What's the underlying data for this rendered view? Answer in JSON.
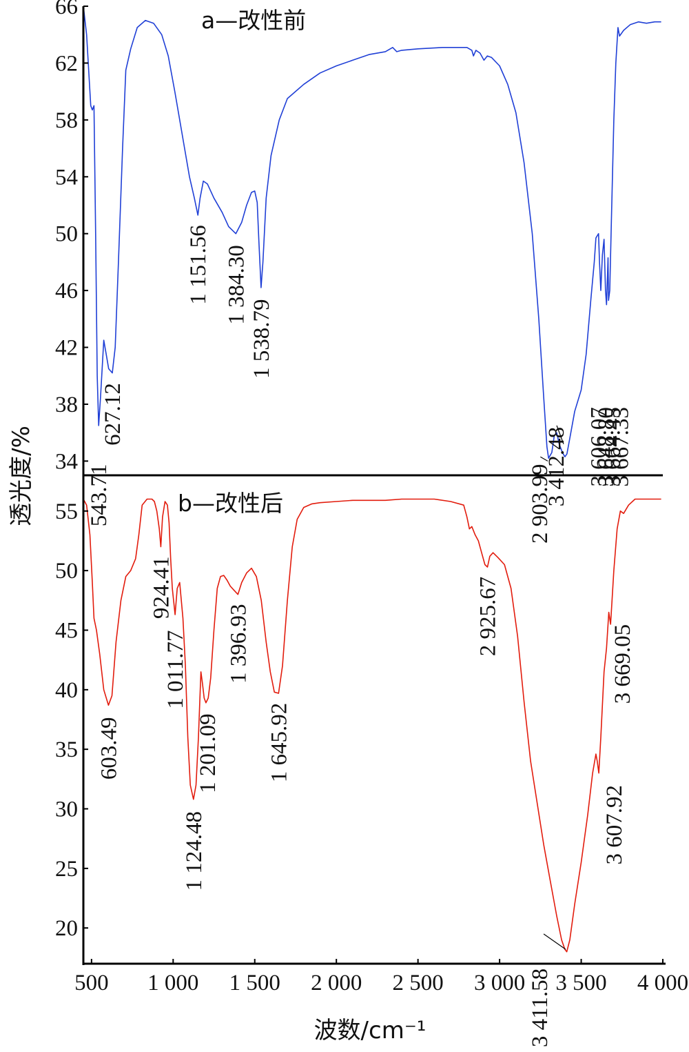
{
  "chart_data": {
    "type": "line",
    "xlabel": "波数/cm⁻¹",
    "ylabel": "透光度/%",
    "xlim": [
      450,
      4000
    ],
    "x_ticks": [
      {
        "value": 500,
        "label": "500"
      },
      {
        "value": 1000,
        "label": "1 000"
      },
      {
        "value": 1500,
        "label": "1 500"
      },
      {
        "value": 2000,
        "label": "2 000"
      },
      {
        "value": 2500,
        "label": "2 500"
      },
      {
        "value": 3000,
        "label": "3 000"
      },
      {
        "value": 3500,
        "label": "3 500"
      },
      {
        "value": 4000,
        "label": "4 000"
      }
    ],
    "panels": [
      {
        "id": "a",
        "title": "a—改性前",
        "color": "#1f3fd6",
        "ylim": [
          33,
          66
        ],
        "y_ticks": [
          {
            "value": 34,
            "label": "34"
          },
          {
            "value": 38,
            "label": "38"
          },
          {
            "value": 42,
            "label": "42"
          },
          {
            "value": 46,
            "label": "46"
          },
          {
            "value": 50,
            "label": "50"
          },
          {
            "value": 54,
            "label": "54"
          },
          {
            "value": 58,
            "label": "58"
          },
          {
            "value": 62,
            "label": "62"
          },
          {
            "value": 66,
            "label": "66"
          }
        ],
        "points": [
          [
            450,
            66
          ],
          [
            470,
            64
          ],
          [
            485,
            61
          ],
          [
            495,
            59
          ],
          [
            505,
            58.7
          ],
          [
            515,
            59
          ],
          [
            525,
            50
          ],
          [
            535,
            40
          ],
          [
            543.71,
            36.5
          ],
          [
            555,
            38.5
          ],
          [
            575,
            42.5
          ],
          [
            590,
            41.5
          ],
          [
            605,
            40.5
          ],
          [
            627.12,
            40.2
          ],
          [
            645,
            42
          ],
          [
            665,
            48
          ],
          [
            690,
            56
          ],
          [
            710,
            61.5
          ],
          [
            740,
            63
          ],
          [
            780,
            64.5
          ],
          [
            830,
            65
          ],
          [
            880,
            64.8
          ],
          [
            930,
            64
          ],
          [
            970,
            62.5
          ],
          [
            1010,
            60
          ],
          [
            1040,
            58
          ],
          [
            1070,
            56
          ],
          [
            1100,
            54
          ],
          [
            1130,
            52.5
          ],
          [
            1151.56,
            51.3
          ],
          [
            1165,
            52.5
          ],
          [
            1185,
            53.7
          ],
          [
            1210,
            53.5
          ],
          [
            1250,
            52.5
          ],
          [
            1300,
            51.5
          ],
          [
            1340,
            50.5
          ],
          [
            1384.3,
            50
          ],
          [
            1420,
            50.8
          ],
          [
            1450,
            52
          ],
          [
            1480,
            52.9
          ],
          [
            1500,
            53
          ],
          [
            1515,
            52.2
          ],
          [
            1525,
            49.5
          ],
          [
            1538.79,
            46.2
          ],
          [
            1550,
            48
          ],
          [
            1570,
            52.5
          ],
          [
            1600,
            55.5
          ],
          [
            1650,
            58
          ],
          [
            1700,
            59.5
          ],
          [
            1800,
            60.5
          ],
          [
            1900,
            61.3
          ],
          [
            2000,
            61.8
          ],
          [
            2100,
            62.2
          ],
          [
            2200,
            62.6
          ],
          [
            2300,
            62.8
          ],
          [
            2345,
            63.1
          ],
          [
            2370,
            62.8
          ],
          [
            2400,
            62.9
          ],
          [
            2500,
            63
          ],
          [
            2650,
            63.1
          ],
          [
            2800,
            63.1
          ],
          [
            2830,
            62.9
          ],
          [
            2840,
            62.5
          ],
          [
            2855,
            62.9
          ],
          [
            2880,
            62.7
          ],
          [
            2903.99,
            62.2
          ],
          [
            2925,
            62.5
          ],
          [
            2950,
            62.4
          ],
          [
            3000,
            61.8
          ],
          [
            3050,
            60.5
          ],
          [
            3100,
            58.5
          ],
          [
            3150,
            55
          ],
          [
            3200,
            50
          ],
          [
            3240,
            44
          ],
          [
            3270,
            38.5
          ],
          [
            3290,
            35
          ],
          [
            3300,
            34.2
          ],
          [
            3320,
            34.6
          ],
          [
            3335,
            35.8
          ],
          [
            3350,
            36
          ],
          [
            3365,
            35.2
          ],
          [
            3385,
            34.6
          ],
          [
            3400,
            34.3
          ],
          [
            3412.48,
            34.5
          ],
          [
            3430,
            35.6
          ],
          [
            3460,
            37.5
          ],
          [
            3500,
            39
          ],
          [
            3530,
            41.5
          ],
          [
            3560,
            45.5
          ],
          [
            3580,
            48
          ],
          [
            3590,
            49.7
          ],
          [
            3606.07,
            50
          ],
          [
            3612,
            48
          ],
          [
            3620,
            46
          ],
          [
            3630,
            48.5
          ],
          [
            3640,
            49.6
          ],
          [
            3648.8,
            46
          ],
          [
            3655,
            45
          ],
          [
            3664.45,
            48.3
          ],
          [
            3667.33,
            45.3
          ],
          [
            3675,
            46
          ],
          [
            3685,
            51
          ],
          [
            3700,
            58
          ],
          [
            3712,
            62
          ],
          [
            3725,
            64.5
          ],
          [
            3735,
            63.9
          ],
          [
            3760,
            64.3
          ],
          [
            3800,
            64.7
          ],
          [
            3850,
            64.9
          ],
          [
            3900,
            64.8
          ],
          [
            3950,
            64.9
          ],
          [
            3990,
            64.9
          ]
        ],
        "annotations": [
          {
            "label": "543.71",
            "x": 543.71,
            "y": 33.8
          },
          {
            "label": "627.12",
            "x": 627.12,
            "y": 39.5
          },
          {
            "label": "1 151.56",
            "x": 1151.56,
            "y": 50.6
          },
          {
            "label": "1 384.30",
            "x": 1384.3,
            "y": 49.2
          },
          {
            "label": "1 538.79",
            "x": 1538.79,
            "y": 45.4
          },
          {
            "label": "2 903.99",
            "x": 3245,
            "y": 33.8
          },
          {
            "label": "3 412.48",
            "x": 3345,
            "y": 36.4
          },
          {
            "label": "3 606.07",
            "x": 3606.07,
            "y": 37.8
          },
          {
            "label": "3 648.80",
            "x": 3648.8,
            "y": 37.8
          },
          {
            "label": "3 664.45",
            "x": 3690,
            "y": 37.8
          },
          {
            "label": "3 667.33",
            "x": 3740,
            "y": 37.8
          }
        ]
      },
      {
        "id": "b",
        "title": "b—改性后",
        "color": "#e21b0c",
        "ylim": [
          17,
          58
        ],
        "y_ticks": [
          {
            "value": 20,
            "label": "20"
          },
          {
            "value": 25,
            "label": "25"
          },
          {
            "value": 30,
            "label": "30"
          },
          {
            "value": 35,
            "label": "35"
          },
          {
            "value": 40,
            "label": "40"
          },
          {
            "value": 45,
            "label": "45"
          },
          {
            "value": 50,
            "label": "50"
          },
          {
            "value": 55,
            "label": "55"
          }
        ],
        "points": [
          [
            450,
            56
          ],
          [
            470,
            55.5
          ],
          [
            490,
            53
          ],
          [
            505,
            49
          ],
          [
            515,
            46
          ],
          [
            530,
            45
          ],
          [
            550,
            43
          ],
          [
            575,
            40
          ],
          [
            603.49,
            38.7
          ],
          [
            625,
            39.5
          ],
          [
            650,
            44
          ],
          [
            680,
            47.5
          ],
          [
            710,
            49.5
          ],
          [
            740,
            50
          ],
          [
            770,
            51
          ],
          [
            790,
            53
          ],
          [
            810,
            55.5
          ],
          [
            840,
            56
          ],
          [
            870,
            56
          ],
          [
            885,
            55.8
          ],
          [
            900,
            55
          ],
          [
            915,
            53.5
          ],
          [
            924.41,
            52
          ],
          [
            935,
            54.5
          ],
          [
            950,
            55.8
          ],
          [
            965,
            55.5
          ],
          [
            975,
            54
          ],
          [
            985,
            51
          ],
          [
            995,
            48.5
          ],
          [
            1011.77,
            46.3
          ],
          [
            1025,
            48.5
          ],
          [
            1040,
            49
          ],
          [
            1060,
            46
          ],
          [
            1075,
            42
          ],
          [
            1090,
            36
          ],
          [
            1105,
            32
          ],
          [
            1124.48,
            30.8
          ],
          [
            1140,
            32
          ],
          [
            1155,
            36
          ],
          [
            1170,
            41.5
          ],
          [
            1180,
            40.5
          ],
          [
            1190,
            39.3
          ],
          [
            1201.09,
            38.9
          ],
          [
            1215,
            39.3
          ],
          [
            1230,
            41
          ],
          [
            1250,
            45
          ],
          [
            1270,
            48.5
          ],
          [
            1290,
            49.5
          ],
          [
            1310,
            49.6
          ],
          [
            1330,
            49.2
          ],
          [
            1350,
            48.7
          ],
          [
            1370,
            48.4
          ],
          [
            1396.93,
            48
          ],
          [
            1420,
            49
          ],
          [
            1450,
            49.8
          ],
          [
            1480,
            50.2
          ],
          [
            1510,
            49.5
          ],
          [
            1540,
            47.5
          ],
          [
            1570,
            44
          ],
          [
            1595,
            41.5
          ],
          [
            1620,
            39.8
          ],
          [
            1645.92,
            39.7
          ],
          [
            1670,
            42
          ],
          [
            1700,
            47.5
          ],
          [
            1730,
            52
          ],
          [
            1760,
            54.3
          ],
          [
            1800,
            55.3
          ],
          [
            1850,
            55.6
          ],
          [
            1900,
            55.7
          ],
          [
            2000,
            55.8
          ],
          [
            2100,
            55.9
          ],
          [
            2200,
            55.9
          ],
          [
            2300,
            55.9
          ],
          [
            2400,
            56
          ],
          [
            2500,
            56
          ],
          [
            2600,
            56
          ],
          [
            2700,
            55.8
          ],
          [
            2780,
            55.5
          ],
          [
            2800,
            54.5
          ],
          [
            2815,
            53.5
          ],
          [
            2830,
            53.7
          ],
          [
            2850,
            53
          ],
          [
            2870,
            52.5
          ],
          [
            2890,
            51.5
          ],
          [
            2910,
            50.5
          ],
          [
            2925.67,
            50.3
          ],
          [
            2940,
            51.2
          ],
          [
            2960,
            51.5
          ],
          [
            2990,
            51.1
          ],
          [
            3030,
            50.5
          ],
          [
            3070,
            48.5
          ],
          [
            3110,
            44.5
          ],
          [
            3150,
            39
          ],
          [
            3190,
            34
          ],
          [
            3230,
            30.5
          ],
          [
            3270,
            27
          ],
          [
            3310,
            24
          ],
          [
            3350,
            21
          ],
          [
            3380,
            19
          ],
          [
            3400,
            18.2
          ],
          [
            3411.58,
            18
          ],
          [
            3430,
            19
          ],
          [
            3460,
            22
          ],
          [
            3500,
            25.5
          ],
          [
            3540,
            29.5
          ],
          [
            3570,
            33
          ],
          [
            3590,
            34.6
          ],
          [
            3598,
            34
          ],
          [
            3607.92,
            33
          ],
          [
            3620,
            36
          ],
          [
            3640,
            41.5
          ],
          [
            3655,
            43.5
          ],
          [
            3669.05,
            46.5
          ],
          [
            3680,
            45.5
          ],
          [
            3700,
            50
          ],
          [
            3720,
            53.5
          ],
          [
            3740,
            55
          ],
          [
            3760,
            54.8
          ],
          [
            3790,
            55.5
          ],
          [
            3830,
            56
          ],
          [
            3880,
            56
          ],
          [
            3940,
            56
          ],
          [
            3990,
            56
          ]
        ],
        "annotations": [
          {
            "label": "603.49",
            "x": 603.49,
            "y": 37.7
          },
          {
            "label": "924.41",
            "x": 924.41,
            "y": 51.2
          },
          {
            "label": "1 011.77",
            "x": 1011.77,
            "y": 45
          },
          {
            "label": "1 124.48",
            "x": 1124.48,
            "y": 29.8
          },
          {
            "label": "1 201.09",
            "x": 1210,
            "y": 38
          },
          {
            "label": "1 396.93",
            "x": 1396.93,
            "y": 47.2
          },
          {
            "label": "1 645.92",
            "x": 1645.92,
            "y": 38.9
          },
          {
            "label": "2 925.67",
            "x": 2925.67,
            "y": 49.5
          },
          {
            "label": "3 411.58",
            "x": 3245,
            "y": 16.6
          },
          {
            "label": "3 607.92",
            "x": 3700,
            "y": 32
          },
          {
            "label": "3 669.05",
            "x": 3750,
            "y": 45.5
          }
        ]
      }
    ]
  }
}
